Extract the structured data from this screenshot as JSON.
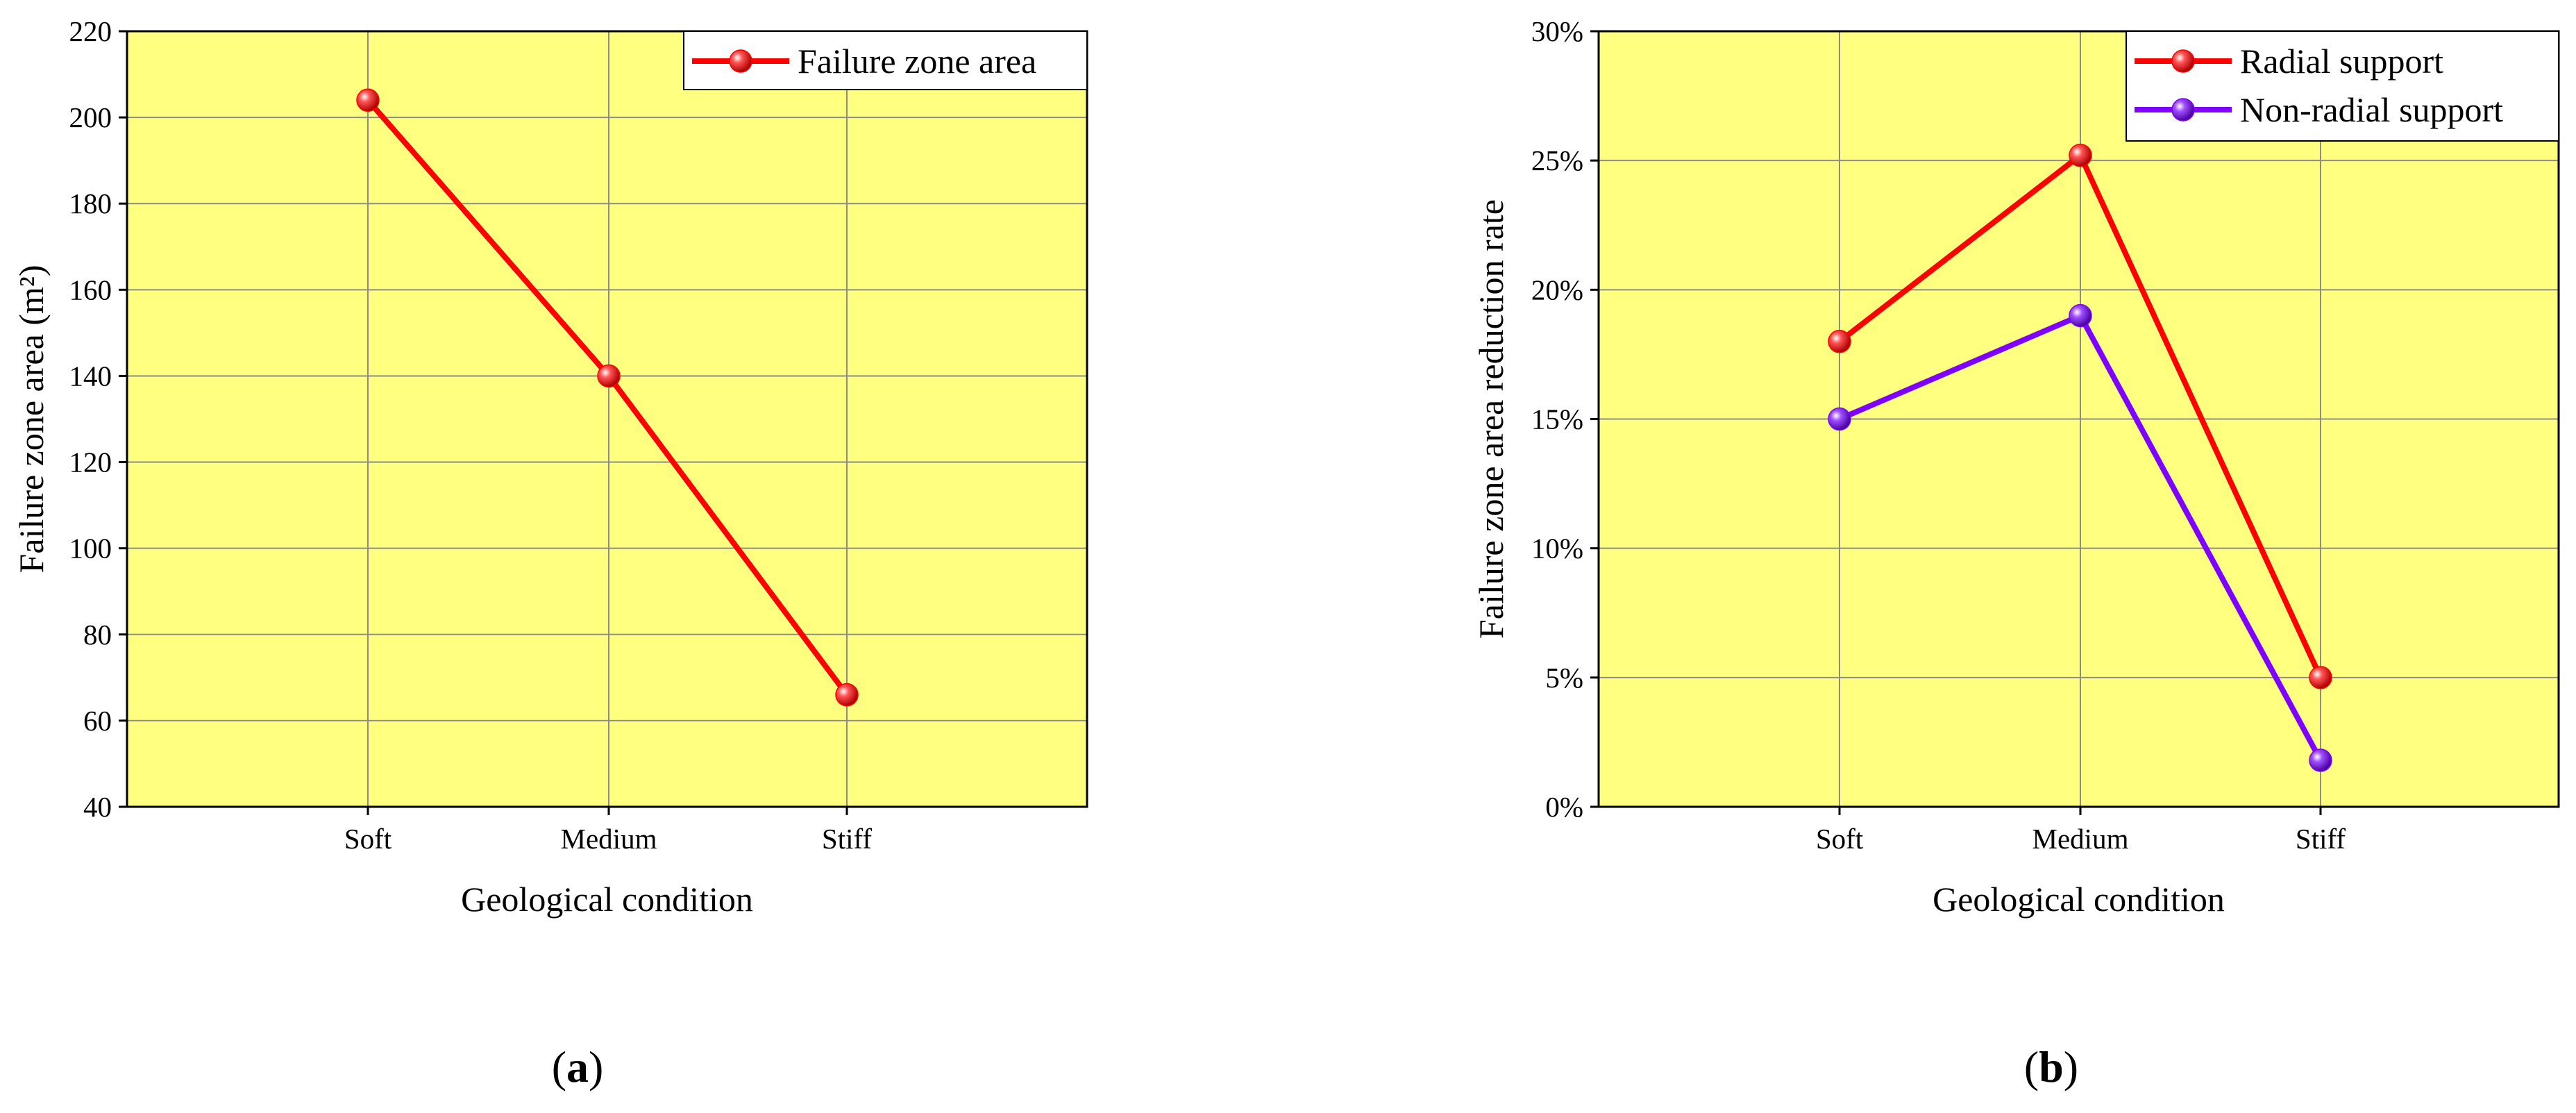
{
  "figure": {
    "panels": [
      {
        "open": "(",
        "letter": "a",
        "close": ")"
      },
      {
        "open": "(",
        "letter": "b",
        "close": ")"
      }
    ]
  },
  "chart_data": [
    {
      "type": "line",
      "categories": [
        "Soft",
        "Medium",
        "Stiff"
      ],
      "series": [
        {
          "name": "Failure zone area",
          "values": [
            204,
            140,
            66
          ],
          "color": "#ff0000"
        }
      ],
      "xlabel": "Geological condition",
      "ylabel": "Failure zone area (m²)",
      "ylim": [
        40,
        220
      ],
      "yticks": [
        "40",
        "60",
        "80",
        "100",
        "120",
        "140",
        "160",
        "180",
        "200",
        "220"
      ],
      "background": "#ffff80",
      "grid": true,
      "legend_position": "top-right"
    },
    {
      "type": "line",
      "categories": [
        "Soft",
        "Medium",
        "Stiff"
      ],
      "series": [
        {
          "name": "Radial support",
          "values": [
            0.18,
            0.252,
            0.05
          ],
          "color": "#ff0000"
        },
        {
          "name": "Non-radial support",
          "values": [
            0.15,
            0.19,
            0.018
          ],
          "color": "#8000ff"
        }
      ],
      "xlabel": "Geological condition",
      "ylabel": "Failure zone area reduction rate",
      "ylim": [
        0,
        0.3
      ],
      "yticks": [
        "0%",
        "5%",
        "10%",
        "15%",
        "20%",
        "25%",
        "30%"
      ],
      "background": "#ffff80",
      "grid": true,
      "legend_position": "top-right"
    }
  ]
}
